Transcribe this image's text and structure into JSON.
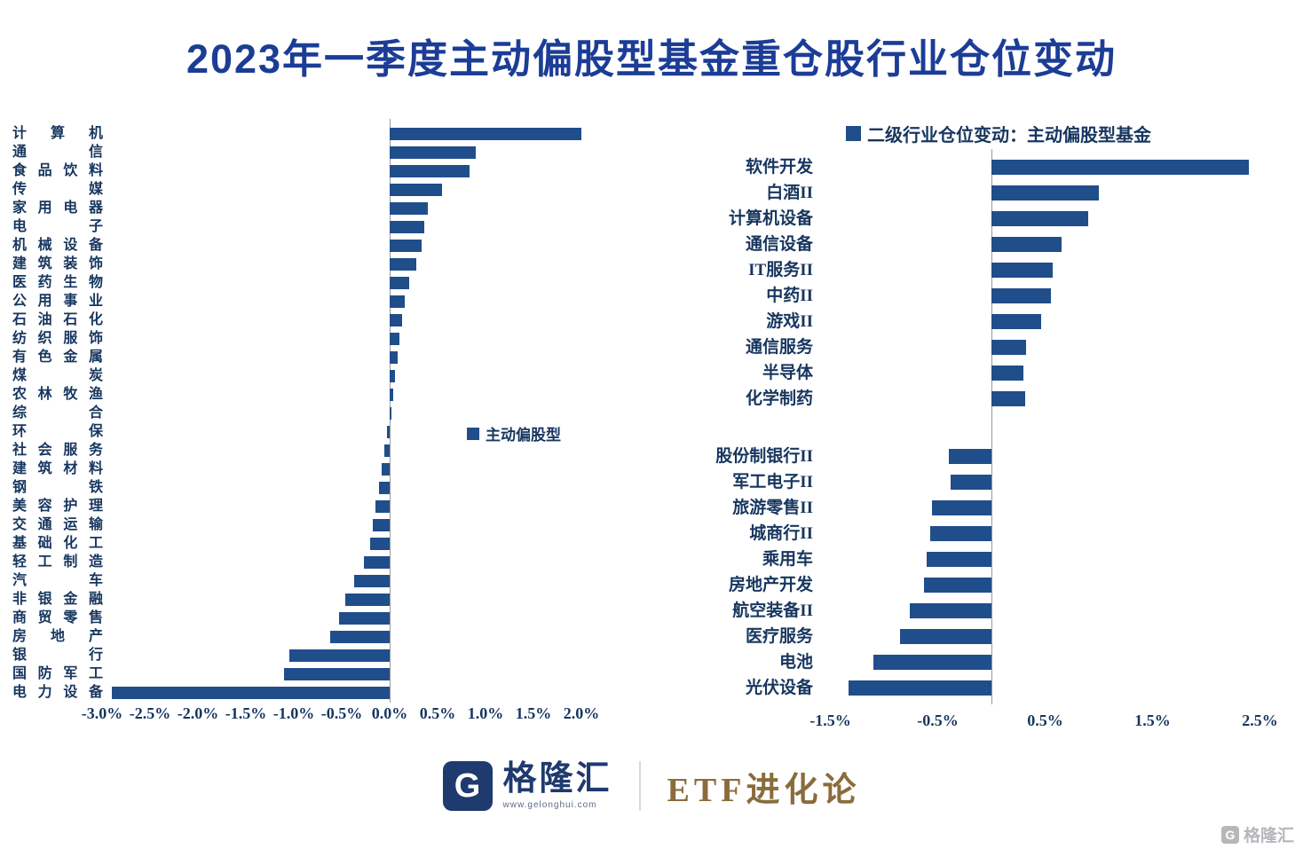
{
  "title": "2023年一季度主动偏股型基金重仓股行业仓位变动",
  "colors": {
    "bar_navy": "#1f4e8b",
    "title_blue": "#1c3d96",
    "label_navy": "#17365f",
    "brand_navy": "#1e3a6e",
    "publication_gold": "#8a6c3c",
    "watermark_gray": "#b5b7ba"
  },
  "footer": {
    "logo_letter": "G",
    "brand": "格隆汇",
    "site": "www.gelonghui.com",
    "publication": "ETF进化论"
  },
  "watermark": {
    "logo_letter": "G",
    "text": "格隆汇"
  },
  "chart_data": [
    {
      "type": "bar",
      "orientation": "horizontal",
      "legend": "主动偏股型",
      "unit": "%",
      "xlim": [
        -3.0,
        2.0
      ],
      "x_ticks": [
        "-3.0%",
        "-2.5%",
        "-2.0%",
        "-1.5%",
        "-1.0%",
        "-0.5%",
        "0.0%",
        "0.5%",
        "1.0%",
        "1.5%",
        "2.0%"
      ],
      "x_tick_values": [
        -3.0,
        -2.5,
        -2.0,
        -1.5,
        -1.0,
        -0.5,
        0.0,
        0.5,
        1.0,
        1.5,
        2.0
      ],
      "categories": [
        "计算机",
        "通信",
        "食品饮料",
        "传媒",
        "家用电器",
        "电子",
        "机械设备",
        "建筑装饰",
        "医药生物",
        "公用事业",
        "石油石化",
        "纺织服饰",
        "有色金属",
        "煤炭",
        "农林牧渔",
        "综合",
        "环保",
        "社会服务",
        "建筑材料",
        "钢铁",
        "美容护理",
        "交通运输",
        "基础化工",
        "轻工制造",
        "汽车",
        "非银金融",
        "商贸零售",
        "房地产",
        "银行",
        "国防军工",
        "电力设备"
      ],
      "values": [
        2.0,
        0.9,
        0.83,
        0.55,
        0.4,
        0.36,
        0.33,
        0.28,
        0.2,
        0.16,
        0.13,
        0.1,
        0.08,
        0.06,
        0.04,
        0.02,
        -0.03,
        -0.06,
        -0.08,
        -0.11,
        -0.15,
        -0.18,
        -0.2,
        -0.27,
        -0.37,
        -0.46,
        -0.53,
        -0.62,
        -1.05,
        -1.1,
        -2.9
      ]
    },
    {
      "type": "bar",
      "orientation": "horizontal",
      "legend": "二级行业仓位变动：主动偏股型基金",
      "unit": "%",
      "xlim": [
        -1.6,
        2.55
      ],
      "x_ticks": [
        "-1.5%",
        "-0.5%",
        "0.5%",
        "1.5%",
        "2.5%"
      ],
      "x_tick_values": [
        -1.5,
        -0.5,
        0.5,
        1.5,
        2.5
      ],
      "gap_after_category": "化学制药",
      "categories": [
        "软件开发",
        "白酒II",
        "计算机设备",
        "通信设备",
        "IT服务II",
        "中药II",
        "游戏II",
        "通信服务",
        "半导体",
        "化学制药",
        "股份制银行II",
        "军工电子II",
        "旅游零售II",
        "城商行II",
        "乘用车",
        "房地产开发",
        "航空装备II",
        "医疗服务",
        "电池",
        "光伏设备"
      ],
      "values": [
        2.4,
        1.0,
        0.9,
        0.65,
        0.57,
        0.55,
        0.46,
        0.32,
        0.3,
        0.31,
        -0.4,
        -0.38,
        -0.55,
        -0.57,
        -0.6,
        -0.63,
        -0.76,
        -0.85,
        -1.1,
        -1.33
      ]
    }
  ]
}
